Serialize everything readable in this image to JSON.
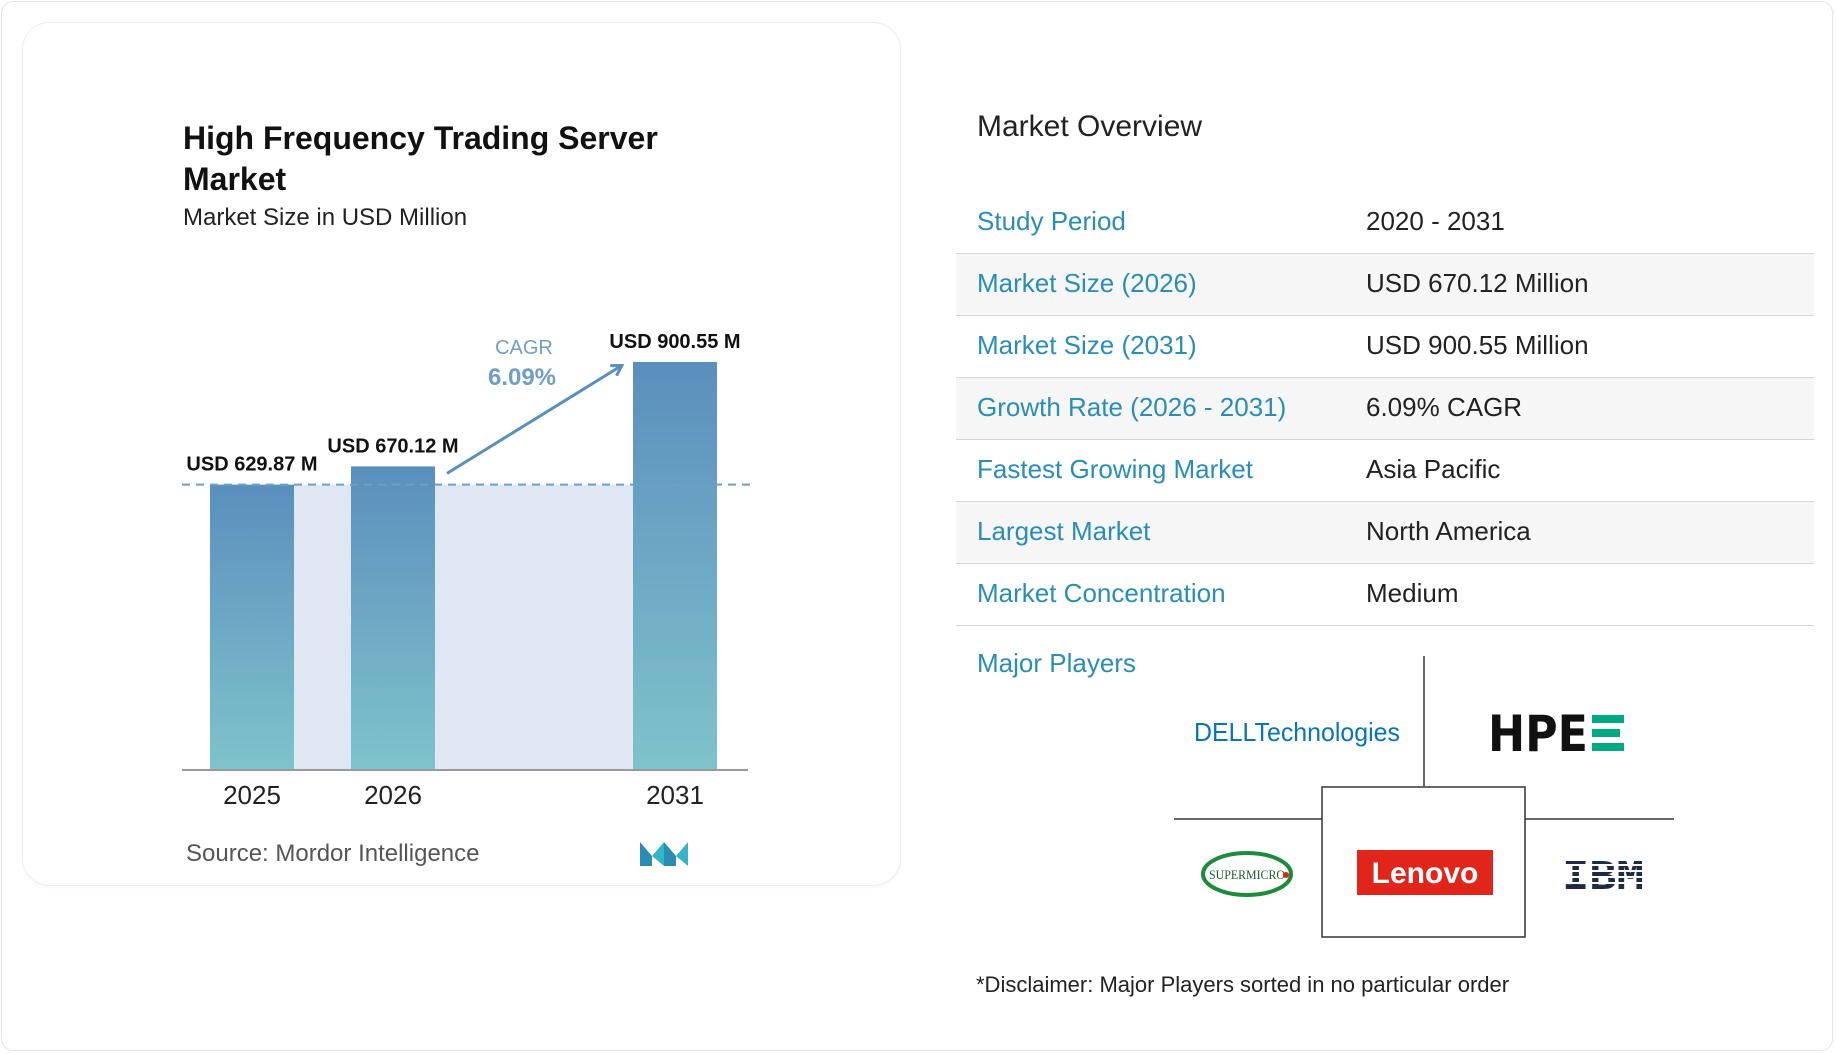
{
  "chart_data": {
    "type": "bar",
    "title": "High Frequency Trading Server Market",
    "subtitle": "Market Size in USD Million",
    "categories": [
      "2025",
      "2026",
      "2031"
    ],
    "values": [
      629.87,
      670.12,
      900.55
    ],
    "value_labels": [
      "USD 629.87 M",
      "USD 670.12 M",
      "USD 900.55 M"
    ],
    "cagr_label": "CAGR",
    "cagr_value": "6.09%",
    "grid": false,
    "legend": "none"
  },
  "source": "Source: Mordor Intelligence",
  "colors": {
    "bar_top": "#5a8fbd",
    "bar_bottom": "#7fc3cb",
    "shade": "#dfe8f2",
    "accent": "#2a8db5",
    "cagr_text": "#6f9ec4"
  },
  "overview": {
    "title": "Market Overview",
    "rows": [
      {
        "label": "Study Period",
        "value": "2020 - 2031"
      },
      {
        "label": "Market Size (2026)",
        "value": "USD 670.12 Million"
      },
      {
        "label": "Market Size (2031)",
        "value": "USD 900.55 Million"
      },
      {
        "label": "Growth Rate (2026 - 2031)",
        "value": "6.09% CAGR"
      },
      {
        "label": "Fastest Growing Market",
        "value": "Asia Pacific"
      },
      {
        "label": "Largest Market",
        "value": "North America"
      },
      {
        "label": "Market Concentration",
        "value": "Medium"
      }
    ]
  },
  "players": {
    "title": "Major Players",
    "logos": {
      "dell": "DELLTechnologies",
      "hpe": "HPE",
      "supermicro": "SUPERMICRO",
      "lenovo": "Lenovo",
      "ibm": "IBM"
    }
  },
  "disclaimer": "*Disclaimer: Major Players sorted in no particular order"
}
